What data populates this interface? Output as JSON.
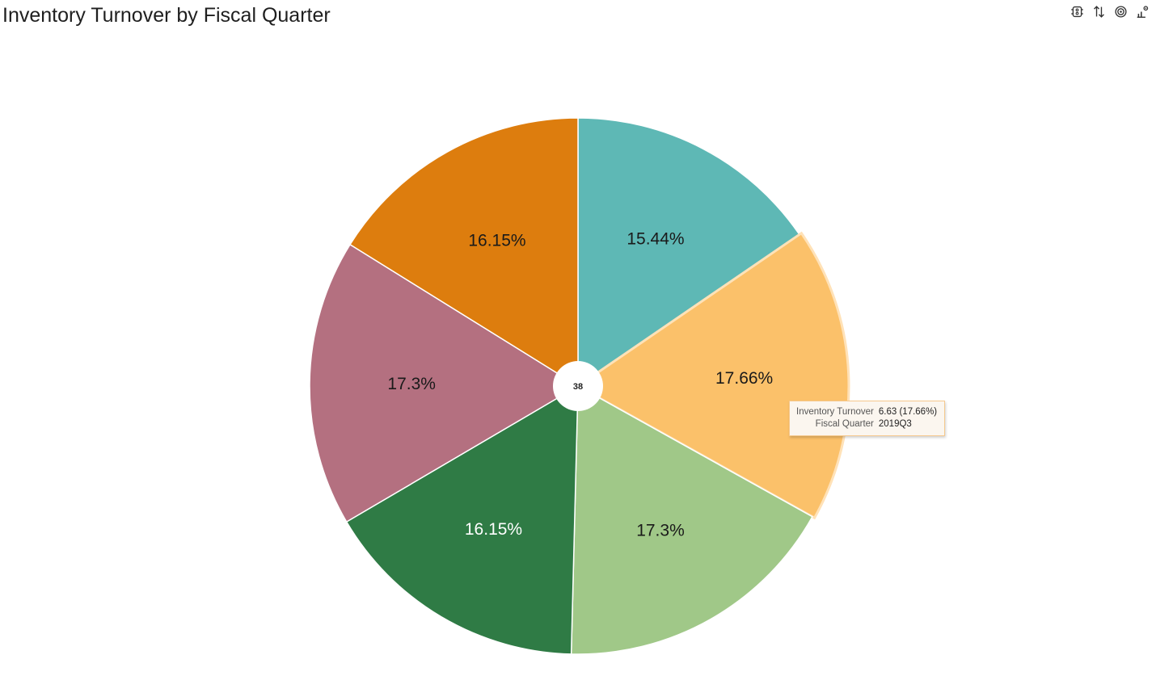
{
  "header": {
    "title": "Inventory Turnover by Fiscal Quarter"
  },
  "toolbar": {
    "icons": [
      "filter-icon",
      "sort-icon",
      "target-icon",
      "chart-settings-icon"
    ]
  },
  "chart_data": {
    "type": "pie",
    "title": "Inventory Turnover by Fiscal Quarter",
    "center_total": "38",
    "slices": [
      {
        "label": "15.44%",
        "percent": 15.44,
        "color": "#5eb8b5",
        "text_color": "#1a1a1a"
      },
      {
        "label": "17.66%",
        "percent": 17.66,
        "color": "#fbc16a",
        "text_color": "#1a1a1a",
        "highlighted": true
      },
      {
        "label": "17.3%",
        "percent": 17.3,
        "color": "#a0c888",
        "text_color": "#1a1a1a"
      },
      {
        "label": "16.15%",
        "percent": 16.15,
        "color": "#2f7b45",
        "text_color": "#ffffff"
      },
      {
        "label": "17.3%",
        "percent": 17.3,
        "color": "#b47080",
        "text_color": "#1a1a1a"
      },
      {
        "label": "16.15%",
        "percent": 16.15,
        "color": "#dd7d0e",
        "text_color": "#1a1a1a"
      }
    ]
  },
  "tooltip": {
    "measure_label": "Inventory Turnover",
    "measure_value": "6.63 (17.66%)",
    "dimension_label": "Fiscal Quarter",
    "dimension_value": "2019Q3"
  }
}
